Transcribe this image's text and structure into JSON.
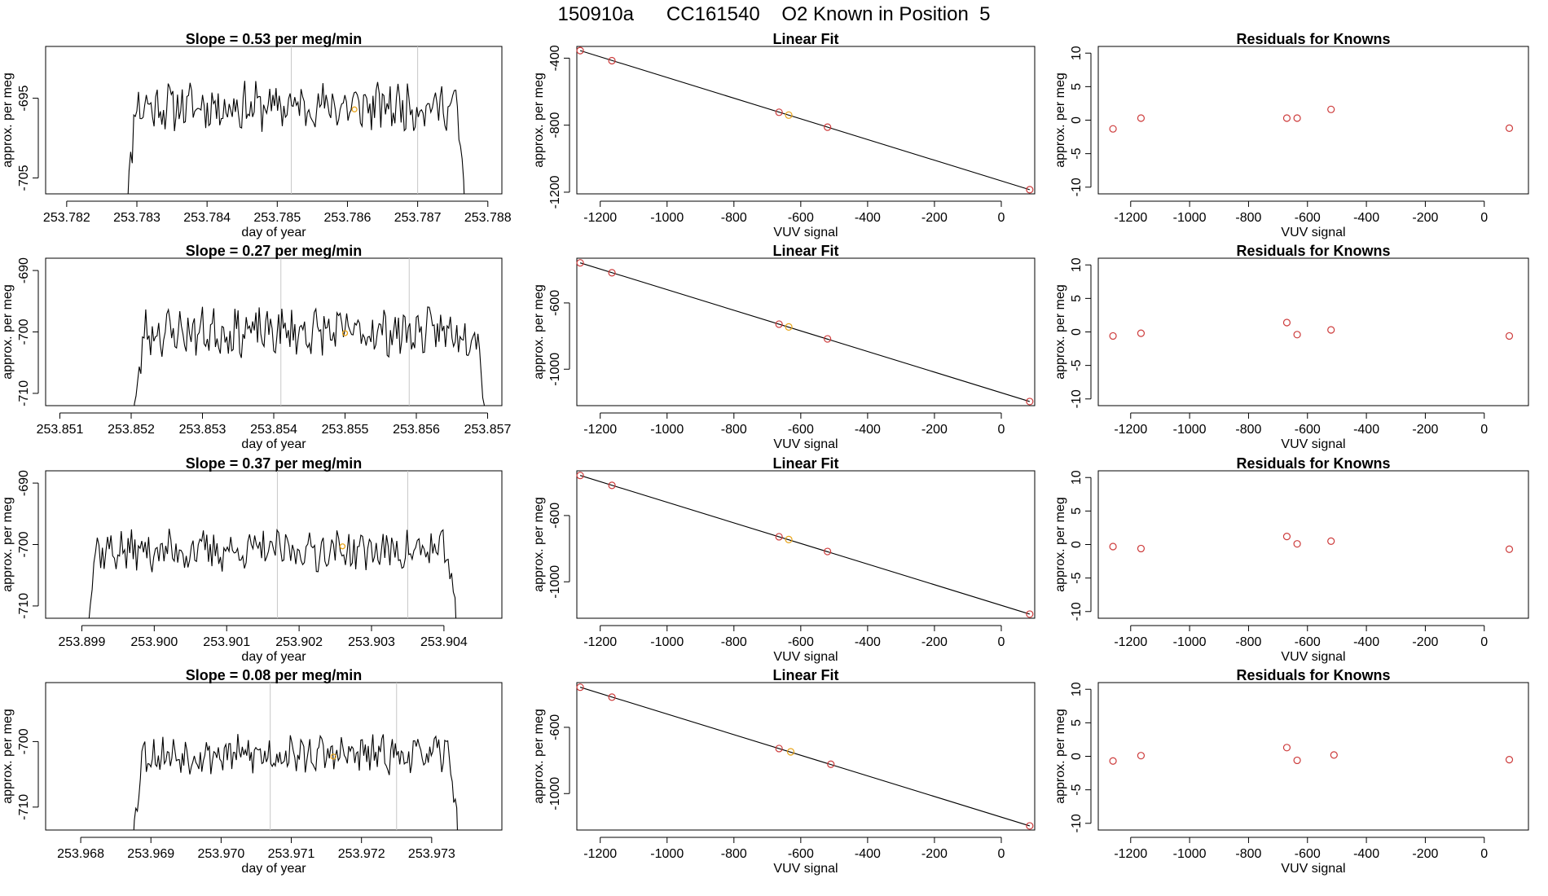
{
  "page": {
    "title": "150910a      CC161540    O2 Known in Position  5",
    "colors": {
      "line": "#000000",
      "known": "#cd3b3b",
      "sample": "#e8a317",
      "vline": "#c8c8c8",
      "frame": "#000000"
    }
  },
  "chart_data": [
    {
      "row": 1,
      "timeseries": {
        "type": "line",
        "title": "Slope =  0.53  per meg/min",
        "xlabel": "day of year",
        "ylabel": "approx. per meg",
        "xlim": [
          253.7817,
          253.7882
        ],
        "ylim": [
          -707.0,
          -688.5
        ],
        "xticks": [
          "253.782",
          "253.783",
          "253.784",
          "253.785",
          "253.786",
          "253.787",
          "253.788"
        ],
        "xtick_values": [
          253.782,
          253.783,
          253.784,
          253.785,
          253.786,
          253.787,
          253.788
        ],
        "yticks": [
          "-705",
          "-695"
        ],
        "ytick_values": [
          -705,
          -695
        ],
        "x_start": 253.7828,
        "x_end": 253.7877,
        "level": -696.0,
        "noise": 2.5,
        "seed": 11,
        "vlines": [
          253.7852,
          253.787
        ],
        "sample_point": {
          "x": 253.7861,
          "y": -696.4
        }
      },
      "fit": {
        "type": "scatter",
        "title": "Linear Fit",
        "xlabel": "VUV signal",
        "ylabel": "approx. per meg",
        "xlim": [
          -1270,
          100
        ],
        "ylim": [
          -1210,
          -330
        ],
        "xticks": [
          "-1200",
          "-1000",
          "-800",
          "-600",
          "-400",
          "-200",
          "0"
        ],
        "xtick_values": [
          -1200,
          -1000,
          -800,
          -600,
          -400,
          -200,
          0
        ],
        "yticks": [
          "-1200",
          "-800",
          "-400"
        ],
        "ytick_values": [
          -1200,
          -800,
          -400
        ],
        "line": {
          "x0": -1260,
          "y0": -355,
          "x1": 85,
          "y1": -1185
        },
        "known_x": [
          -1260,
          -1165,
          -665,
          -520,
          85
        ],
        "known_y": [
          -355,
          -415,
          -723,
          -812,
          -1185
        ],
        "sample_x": [
          -636
        ],
        "sample_y": [
          -740
        ]
      },
      "residuals": {
        "type": "scatter",
        "title": "Residuals for Knowns",
        "xlabel": "VUV signal",
        "ylabel": "approx. per meg",
        "xlim": [
          -1310,
          150
        ],
        "ylim": [
          -11,
          11
        ],
        "xticks": [
          "-1200",
          "-1000",
          "-800",
          "-600",
          "-400",
          "-200",
          "0"
        ],
        "xtick_values": [
          -1200,
          -1000,
          -800,
          -600,
          -400,
          -200,
          0
        ],
        "yticks": [
          "-10",
          "-5",
          "0",
          "5",
          "10"
        ],
        "ytick_values": [
          -10,
          -5,
          0,
          5,
          10
        ],
        "x": [
          -1260,
          -1165,
          -670,
          -635,
          -520,
          85
        ],
        "y": [
          -1.3,
          0.3,
          0.3,
          0.3,
          1.6,
          -1.2
        ]
      }
    },
    {
      "row": 2,
      "timeseries": {
        "type": "line",
        "title": "Slope =  0.27  per meg/min",
        "xlabel": "day of year",
        "ylabel": "approx. per meg",
        "xlim": [
          253.8508,
          253.8572
        ],
        "ylim": [
          -712.0,
          -688.0
        ],
        "xticks": [
          "253.851",
          "253.852",
          "253.853",
          "253.854",
          "253.855",
          "253.856",
          "253.857"
        ],
        "xtick_values": [
          253.851,
          253.852,
          253.853,
          253.854,
          253.855,
          253.856,
          253.857
        ],
        "yticks": [
          "-710",
          "-700",
          "-690"
        ],
        "ytick_values": [
          -710,
          -700,
          -690
        ],
        "x_start": 253.852,
        "x_end": 253.857,
        "level": -700.0,
        "noise": 3.2,
        "seed": 23,
        "vlines": [
          253.8541,
          253.8559
        ],
        "sample_point": {
          "x": 253.855,
          "y": -700.2
        }
      },
      "fit": {
        "type": "scatter",
        "title": "Linear Fit",
        "xlabel": "VUV signal",
        "ylabel": "approx. per meg",
        "xlim": [
          -1270,
          100
        ],
        "ylim": [
          -1220,
          -330
        ],
        "xticks": [
          "-1200",
          "-1000",
          "-800",
          "-600",
          "-400",
          "-200",
          "0"
        ],
        "xtick_values": [
          -1200,
          -1000,
          -800,
          -600,
          -400,
          -200,
          0
        ],
        "yticks": [
          "-1000",
          "-600"
        ],
        "ytick_values": [
          -1000,
          -600
        ],
        "line": {
          "x0": -1260,
          "y0": -358,
          "x1": 85,
          "y1": -1195
        },
        "known_x": [
          -1260,
          -1165,
          -665,
          -520,
          85
        ],
        "known_y": [
          -358,
          -418,
          -728,
          -817,
          -1195
        ],
        "sample_x": [
          -636
        ],
        "sample_y": [
          -745
        ]
      },
      "residuals": {
        "type": "scatter",
        "title": "Residuals for Knowns",
        "xlabel": "VUV signal",
        "ylabel": "approx. per meg",
        "xlim": [
          -1310,
          150
        ],
        "ylim": [
          -11,
          11
        ],
        "xticks": [
          "-1200",
          "-1000",
          "-800",
          "-600",
          "-400",
          "-200",
          "0"
        ],
        "xtick_values": [
          -1200,
          -1000,
          -800,
          -600,
          -400,
          -200,
          0
        ],
        "yticks": [
          "-10",
          "-5",
          "0",
          "5",
          "10"
        ],
        "ytick_values": [
          -10,
          -5,
          0,
          5,
          10
        ],
        "x": [
          -1260,
          -1165,
          -670,
          -635,
          -520,
          85
        ],
        "y": [
          -0.6,
          -0.2,
          1.4,
          -0.4,
          0.3,
          -0.6
        ]
      }
    },
    {
      "row": 3,
      "timeseries": {
        "type": "line",
        "title": "Slope =  0.37  per meg/min",
        "xlabel": "day of year",
        "ylabel": "approx. per meg",
        "xlim": [
          253.8985,
          253.9048
        ],
        "ylim": [
          -712.0,
          -688.0
        ],
        "xticks": [
          "253.899",
          "253.900",
          "253.901",
          "253.902",
          "253.903",
          "253.904"
        ],
        "xtick_values": [
          253.899,
          253.9,
          253.901,
          253.902,
          253.903,
          253.904
        ],
        "yticks": [
          "-710",
          "-700",
          "-690"
        ],
        "ytick_values": [
          -710,
          -700,
          -690
        ],
        "x_start": 253.899,
        "x_end": 253.9042,
        "level": -701.0,
        "noise": 2.8,
        "seed": 37,
        "vlines": [
          253.9017,
          253.9035
        ],
        "sample_point": {
          "x": 253.9026,
          "y": -700.3
        }
      },
      "fit": {
        "type": "scatter",
        "title": "Linear Fit",
        "xlabel": "VUV signal",
        "ylabel": "approx. per meg",
        "xlim": [
          -1270,
          100
        ],
        "ylim": [
          -1220,
          -330
        ],
        "xticks": [
          "-1200",
          "-1000",
          "-800",
          "-600",
          "-400",
          "-200",
          "0"
        ],
        "xtick_values": [
          -1200,
          -1000,
          -800,
          -600,
          -400,
          -200,
          0
        ],
        "yticks": [
          "-1000",
          "-600"
        ],
        "ytick_values": [
          -1000,
          -600
        ],
        "line": {
          "x0": -1260,
          "y0": -358,
          "x1": 85,
          "y1": -1195
        },
        "known_x": [
          -1260,
          -1165,
          -665,
          -520,
          85
        ],
        "known_y": [
          -358,
          -418,
          -728,
          -817,
          -1195
        ],
        "sample_x": [
          -636
        ],
        "sample_y": [
          -745
        ]
      },
      "residuals": {
        "type": "scatter",
        "title": "Residuals for Knowns",
        "xlabel": "VUV signal",
        "ylabel": "approx. per meg",
        "xlim": [
          -1310,
          150
        ],
        "ylim": [
          -11,
          11
        ],
        "xticks": [
          "-1200",
          "-1000",
          "-800",
          "-600",
          "-400",
          "-200",
          "0"
        ],
        "xtick_values": [
          -1200,
          -1000,
          -800,
          -600,
          -400,
          -200,
          0
        ],
        "yticks": [
          "-10",
          "-5",
          "0",
          "5",
          "10"
        ],
        "ytick_values": [
          -10,
          -5,
          0,
          5,
          10
        ],
        "x": [
          -1260,
          -1165,
          -670,
          -635,
          -520,
          85
        ],
        "y": [
          -0.3,
          -0.6,
          1.2,
          0.1,
          0.5,
          -0.7
        ]
      }
    },
    {
      "row": 4,
      "timeseries": {
        "type": "line",
        "title": "Slope =  0.08  per meg/min",
        "xlabel": "day of year",
        "ylabel": "approx. per meg",
        "xlim": [
          253.9675,
          253.974
        ],
        "ylim": [
          -713.5,
          -691.0
        ],
        "xticks": [
          "253.968",
          "253.969",
          "253.970",
          "253.971",
          "253.972",
          "253.973"
        ],
        "xtick_values": [
          253.968,
          253.969,
          253.97,
          253.971,
          253.972,
          253.973
        ],
        "yticks": [
          "-710",
          "-700"
        ],
        "ytick_values": [
          -710,
          -700
        ],
        "x_start": 253.9687,
        "x_end": 253.9734,
        "level": -702.0,
        "noise": 2.4,
        "seed": 53,
        "vlines": [
          253.9707,
          253.9725
        ],
        "sample_point": {
          "x": 253.9716,
          "y": -702.3
        }
      },
      "fit": {
        "type": "scatter",
        "title": "Linear Fit",
        "xlabel": "VUV signal",
        "ylabel": "approx. per meg",
        "xlim": [
          -1270,
          100
        ],
        "ylim": [
          -1220,
          -330
        ],
        "xticks": [
          "-1200",
          "-1000",
          "-800",
          "-600",
          "-400",
          "-200",
          "0"
        ],
        "xtick_values": [
          -1200,
          -1000,
          -800,
          -600,
          -400,
          -200,
          0
        ],
        "yticks": [
          "-1000",
          "-600"
        ],
        "ytick_values": [
          -1000,
          -600
        ],
        "line": {
          "x0": -1260,
          "y0": -358,
          "x1": 85,
          "y1": -1195
        },
        "known_x": [
          -1260,
          -1165,
          -665,
          -510,
          85
        ],
        "known_y": [
          -358,
          -418,
          -728,
          -823,
          -1195
        ],
        "sample_x": [
          -630
        ],
        "sample_y": [
          -748
        ]
      },
      "residuals": {
        "type": "scatter",
        "title": "Residuals for Knowns",
        "xlabel": "VUV signal",
        "ylabel": "approx. per meg",
        "xlim": [
          -1310,
          150
        ],
        "ylim": [
          -11,
          11
        ],
        "xticks": [
          "-1200",
          "-1000",
          "-800",
          "-600",
          "-400",
          "-200",
          "0"
        ],
        "xtick_values": [
          -1200,
          -1000,
          -800,
          -600,
          -400,
          -200,
          0
        ],
        "yticks": [
          "-10",
          "-5",
          "0",
          "5",
          "10"
        ],
        "ytick_values": [
          -10,
          -5,
          0,
          5,
          10
        ],
        "x": [
          -1260,
          -1165,
          -670,
          -635,
          -510,
          85
        ],
        "y": [
          -0.7,
          0.1,
          1.3,
          -0.6,
          0.2,
          -0.5
        ]
      }
    }
  ]
}
